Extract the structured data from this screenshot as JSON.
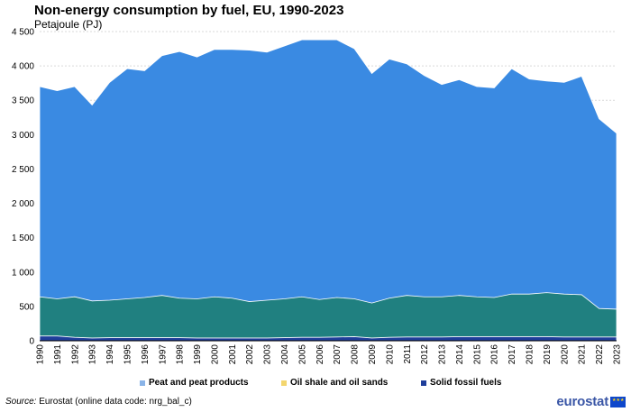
{
  "header": {
    "title": "Non-energy consumption by fuel, EU, 1990-2023",
    "subtitle": "Petajoule (PJ)"
  },
  "footer": {
    "source_label": "Source:",
    "source_text": "Eurostat (online data code: nrg_bal_c)",
    "logo_text": "eurostat"
  },
  "colors": {
    "total": "#3a8ae2",
    "middle": "#208080",
    "solid": "#1f3e9a",
    "peat": "#8ab4e8",
    "oil_shale": "#f3d66e",
    "grid": "#d9d9d9"
  },
  "chart_data": {
    "type": "area",
    "title": "Non-energy consumption by fuel, EU, 1990-2023",
    "subtitle": "Petajoule (PJ)",
    "xlabel": "",
    "ylabel": "",
    "ylim": [
      0,
      4500
    ],
    "yticks": [
      0,
      500,
      1000,
      1500,
      2000,
      2500,
      3000,
      3500,
      4000,
      4500
    ],
    "ytick_labels": [
      "0",
      "500",
      "1 000",
      "1 500",
      "2 000",
      "2 500",
      "3 000",
      "3 500",
      "4 000",
      "4 500"
    ],
    "grid": true,
    "legend_position": "bottom",
    "categories": [
      "1990",
      "1991",
      "1992",
      "1993",
      "1994",
      "1995",
      "1996",
      "1997",
      "1998",
      "1999",
      "2000",
      "2001",
      "2002",
      "2003",
      "2004",
      "2005",
      "2006",
      "2007",
      "2008",
      "2009",
      "2010",
      "2011",
      "2012",
      "2013",
      "2014",
      "2015",
      "2016",
      "2017",
      "2018",
      "2019",
      "2020",
      "2021",
      "2022",
      "2023"
    ],
    "layers": [
      {
        "role": "total",
        "values": [
          3700,
          3640,
          3700,
          3430,
          3760,
          3960,
          3930,
          4150,
          4210,
          4130,
          4240,
          4240,
          4230,
          4200,
          4290,
          4380,
          4380,
          4380,
          4250,
          3890,
          4100,
          4030,
          3860,
          3730,
          3800,
          3700,
          3680,
          3960,
          3810,
          3780,
          3760,
          3850,
          3230,
          3020
        ]
      },
      {
        "role": "middle",
        "values": [
          640,
          610,
          640,
          580,
          590,
          610,
          630,
          660,
          620,
          610,
          640,
          620,
          570,
          590,
          610,
          640,
          600,
          630,
          610,
          550,
          620,
          660,
          640,
          640,
          660,
          640,
          630,
          680,
          680,
          700,
          680,
          670,
          470,
          460
        ]
      },
      {
        "role": "solid",
        "values": [
          70,
          70,
          50,
          40,
          45,
          45,
          45,
          45,
          45,
          40,
          40,
          40,
          40,
          40,
          45,
          50,
          50,
          55,
          60,
          40,
          50,
          55,
          55,
          55,
          60,
          60,
          60,
          60,
          60,
          60,
          55,
          55,
          55,
          55
        ]
      }
    ],
    "legend": [
      {
        "label": "Peat and peat products",
        "color_key": "peat"
      },
      {
        "label": "Oil shale and oil sands",
        "color_key": "oil_shale"
      },
      {
        "label": "Solid fossil fuels",
        "color_key": "solid"
      }
    ]
  }
}
